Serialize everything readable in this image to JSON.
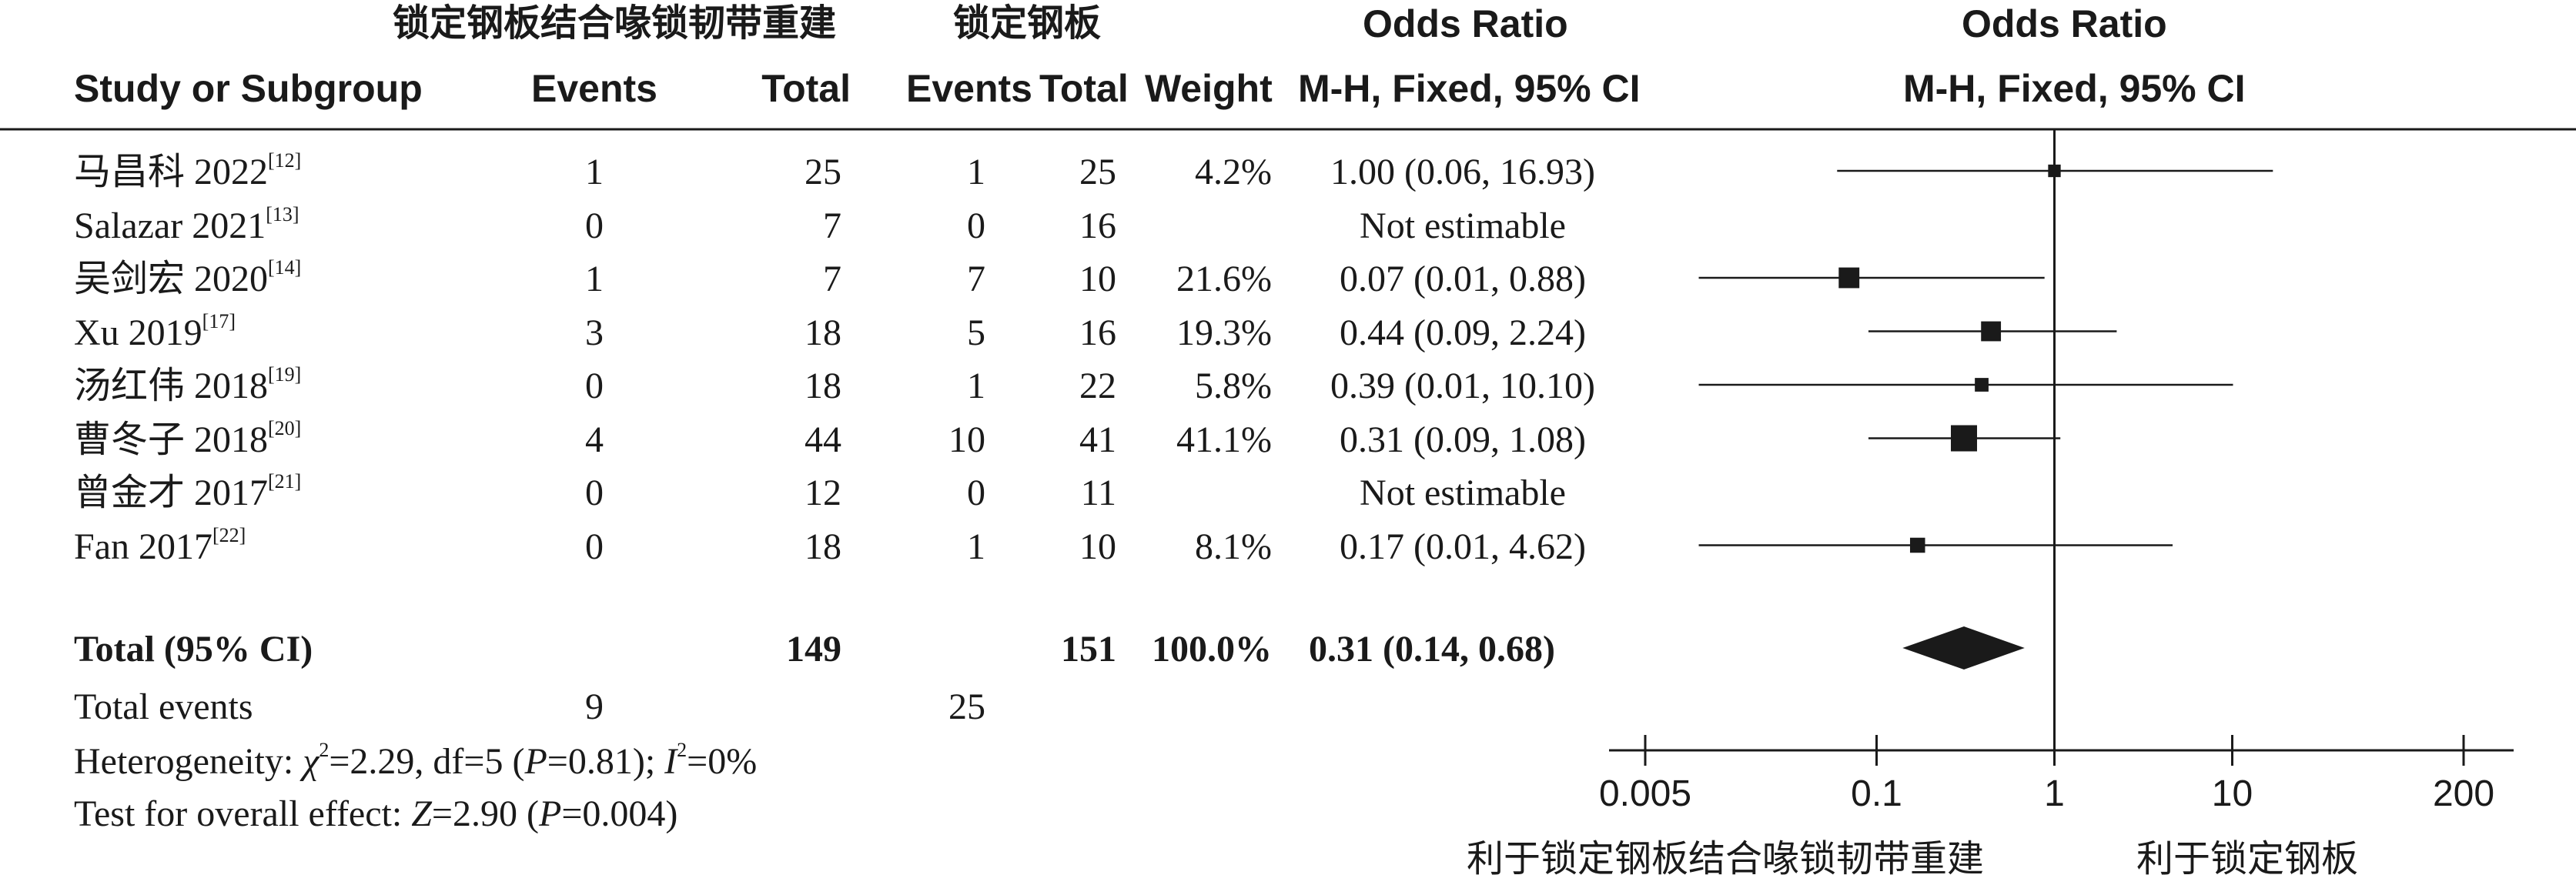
{
  "header": {
    "group_exp": "锁定钢板结合喙锁韧带重建",
    "group_ctl": "锁定钢板",
    "or_title": "Odds Ratio",
    "or_title_plot": "Odds Ratio",
    "col_study": "Study or Subgroup",
    "col_events_exp": "Events",
    "col_total_exp": "Total",
    "col_events_ctl": "Events",
    "col_total_ctl": "Total",
    "col_weight": "Weight",
    "col_method": "M-H, Fixed, 95% CI",
    "col_method_plot": "M-H, Fixed, 95% CI"
  },
  "rows": [
    {
      "study": "马昌科 2022",
      "ref": "[12]",
      "e1": "1",
      "t1": "25",
      "e2": "1",
      "t2": "25",
      "weight": "4.2%",
      "ci": "1.00 (0.06, 16.93)"
    },
    {
      "study": "Salazar 2021",
      "ref": "[13]",
      "e1": "0",
      "t1": "7",
      "e2": "0",
      "t2": "16",
      "weight": "",
      "ci": "Not estimable"
    },
    {
      "study": "吴剑宏 2020",
      "ref": "[14]",
      "e1": "1",
      "t1": "7",
      "e2": "7",
      "t2": "10",
      "weight": "21.6%",
      "ci": "0.07 (0.01, 0.88)"
    },
    {
      "study": "Xu 2019",
      "ref": "[17]",
      "e1": "3",
      "t1": "18",
      "e2": "5",
      "t2": "16",
      "weight": "19.3%",
      "ci": "0.44 (0.09, 2.24)"
    },
    {
      "study": "汤红伟 2018",
      "ref": "[19]",
      "e1": "0",
      "t1": "18",
      "e2": "1",
      "t2": "22",
      "weight": "5.8%",
      "ci": "0.39 (0.01, 10.10)"
    },
    {
      "study": "曹冬子 2018",
      "ref": "[20]",
      "e1": "4",
      "t1": "44",
      "e2": "10",
      "t2": "41",
      "weight": "41.1%",
      "ci": "0.31 (0.09, 1.08)"
    },
    {
      "study": "曾金才 2017",
      "ref": "[21]",
      "e1": "0",
      "t1": "12",
      "e2": "0",
      "t2": "11",
      "weight": "",
      "ci": "Not estimable"
    },
    {
      "study": "Fan 2017",
      "ref": "[22]",
      "e1": "0",
      "t1": "18",
      "e2": "1",
      "t2": "10",
      "weight": "8.1%",
      "ci": "0.17 (0.01, 4.62)"
    }
  ],
  "total": {
    "label": "Total (95% CI)",
    "t1": "149",
    "t2": "151",
    "weight": "100.0%",
    "ci": "0.31 (0.14, 0.68)"
  },
  "events": {
    "label": "Total events",
    "e1": "9",
    "e2": "25"
  },
  "heterogeneity": {
    "prefix": "Heterogeneity: ",
    "chi": "χ",
    "sq": "2",
    "stat": "=2.29, df=5 (",
    "p": "P",
    "pval": "=0.81); ",
    "i": "I",
    "i2": "2",
    "ival": "=0%"
  },
  "overall": {
    "prefix": "Test for overall effect: ",
    "z": "Z",
    "zval": "=2.90 (",
    "p": "P",
    "pval": "=0.004)"
  },
  "axis": {
    "ticks": [
      {
        "value": 0.005,
        "label": "0.005"
      },
      {
        "value": 0.1,
        "label": "0.1"
      },
      {
        "value": 1,
        "label": "1"
      },
      {
        "value": 10,
        "label": "10"
      },
      {
        "value": 200,
        "label": "200"
      }
    ],
    "favours_left": "利于锁定钢板结合喙锁韧带重建",
    "favours_right": "利于锁定钢板"
  },
  "chart_data": {
    "type": "forest",
    "scale": "log",
    "xlim": [
      0.005,
      200
    ],
    "reference": 1,
    "studies": [
      {
        "name": "马昌科 2022",
        "or": 1.0,
        "lo": 0.06,
        "hi": 16.93,
        "weight": 4.2
      },
      {
        "name": "Salazar 2021",
        "or": null,
        "lo": null,
        "hi": null,
        "weight": null
      },
      {
        "name": "吴剑宏 2020",
        "or": 0.07,
        "lo": 0.01,
        "hi": 0.88,
        "weight": 21.6
      },
      {
        "name": "Xu 2019",
        "or": 0.44,
        "lo": 0.09,
        "hi": 2.24,
        "weight": 19.3
      },
      {
        "name": "汤红伟 2018",
        "or": 0.39,
        "lo": 0.01,
        "hi": 10.1,
        "weight": 5.8
      },
      {
        "name": "曹冬子 2018",
        "or": 0.31,
        "lo": 0.09,
        "hi": 1.08,
        "weight": 41.1
      },
      {
        "name": "曾金才 2017",
        "or": null,
        "lo": null,
        "hi": null,
        "weight": null
      },
      {
        "name": "Fan 2017",
        "or": 0.17,
        "lo": 0.01,
        "hi": 4.62,
        "weight": 8.1
      }
    ],
    "pooled": {
      "or": 0.31,
      "lo": 0.14,
      "hi": 0.68
    }
  }
}
